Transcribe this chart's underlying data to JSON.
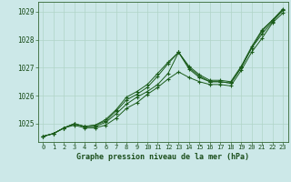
{
  "title": "Graphe pression niveau de la mer (hPa)",
  "bg_color": "#cce8e8",
  "grid_color": "#b0d4c8",
  "line_color": "#1a5c1a",
  "xlim": [
    -0.5,
    23.5
  ],
  "ylim": [
    1024.35,
    1029.35
  ],
  "yticks": [
    1025,
    1026,
    1027,
    1028,
    1029
  ],
  "xticks": [
    0,
    1,
    2,
    3,
    4,
    5,
    6,
    7,
    8,
    9,
    10,
    11,
    12,
    13,
    14,
    15,
    16,
    17,
    18,
    19,
    20,
    21,
    22,
    23
  ],
  "xtick_labels": [
    "0",
    "1",
    "2",
    "3",
    "4",
    "5",
    "6",
    "7",
    "8",
    "9",
    "10",
    "11",
    "12",
    "13",
    "14",
    "15",
    "16",
    "17",
    "18",
    "19",
    "20",
    "21",
    "22",
    "23"
  ],
  "series": [
    [
      1024.55,
      1024.65,
      1024.85,
      1024.95,
      1024.85,
      1024.85,
      1024.95,
      1025.2,
      1025.55,
      1025.75,
      1026.05,
      1026.3,
      1026.6,
      1026.85,
      1026.65,
      1026.5,
      1026.4,
      1026.4,
      1026.35,
      1026.9,
      1027.55,
      1028.05,
      1028.6,
      1028.95
    ],
    [
      1024.55,
      1024.65,
      1024.85,
      1025.0,
      1024.9,
      1024.95,
      1025.15,
      1025.5,
      1025.95,
      1026.15,
      1026.4,
      1026.8,
      1027.2,
      1027.55,
      1027.05,
      1026.75,
      1026.55,
      1026.55,
      1026.5,
      1027.05,
      1027.75,
      1028.35,
      1028.7,
      1029.05
    ],
    [
      1024.55,
      1024.65,
      1024.85,
      1025.0,
      1024.9,
      1024.9,
      1025.05,
      1025.35,
      1025.7,
      1025.95,
      1026.15,
      1026.4,
      1026.8,
      1027.55,
      1026.95,
      1026.65,
      1026.5,
      1026.5,
      1026.45,
      1027.0,
      1027.7,
      1028.2,
      1028.65,
      1029.05
    ],
    [
      1024.55,
      1024.65,
      1024.85,
      1025.0,
      1024.9,
      1024.95,
      1025.1,
      1025.45,
      1025.85,
      1026.05,
      1026.3,
      1026.7,
      1027.15,
      1027.55,
      1027.0,
      1026.7,
      1026.5,
      1026.5,
      1026.45,
      1027.0,
      1027.7,
      1028.3,
      1028.7,
      1029.1
    ]
  ]
}
